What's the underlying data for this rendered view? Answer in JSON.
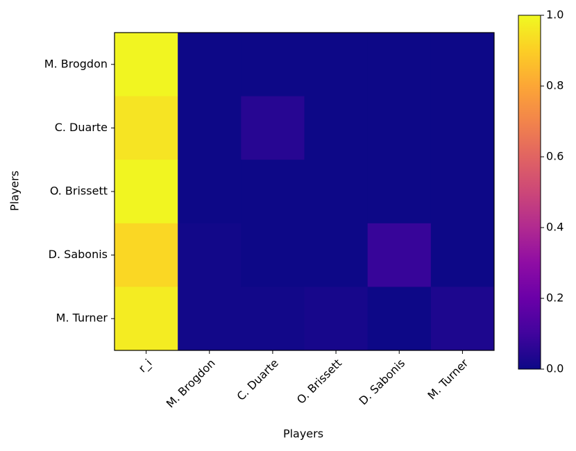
{
  "chart_data": {
    "type": "heatmap",
    "x_label": "Players",
    "y_label": "Players",
    "x_categories": [
      "r_i",
      "M. Brogdon",
      "C. Duarte",
      "O. Brissett",
      "D. Sabonis",
      "M. Turner"
    ],
    "y_categories": [
      "M. Brogdon",
      "C. Duarte",
      "O. Brissett",
      "D. Sabonis",
      "M. Turner"
    ],
    "values": [
      [
        0.99,
        0.0,
        0.0,
        0.0,
        0.0,
        0.0
      ],
      [
        0.95,
        0.0,
        0.05,
        0.0,
        0.0,
        0.0
      ],
      [
        0.99,
        0.0,
        0.0,
        0.0,
        0.0,
        0.0
      ],
      [
        0.92,
        0.01,
        0.0,
        0.0,
        0.08,
        0.0
      ],
      [
        0.97,
        0.01,
        0.01,
        0.02,
        0.0,
        0.03
      ]
    ],
    "colormap": "plasma",
    "clim": [
      0,
      1
    ],
    "cticks": [
      {
        "value": 0,
        "label": "0.0"
      },
      0.2,
      0.4,
      0.6,
      0.8,
      {
        "value": 1,
        "label": "1.0"
      }
    ]
  }
}
